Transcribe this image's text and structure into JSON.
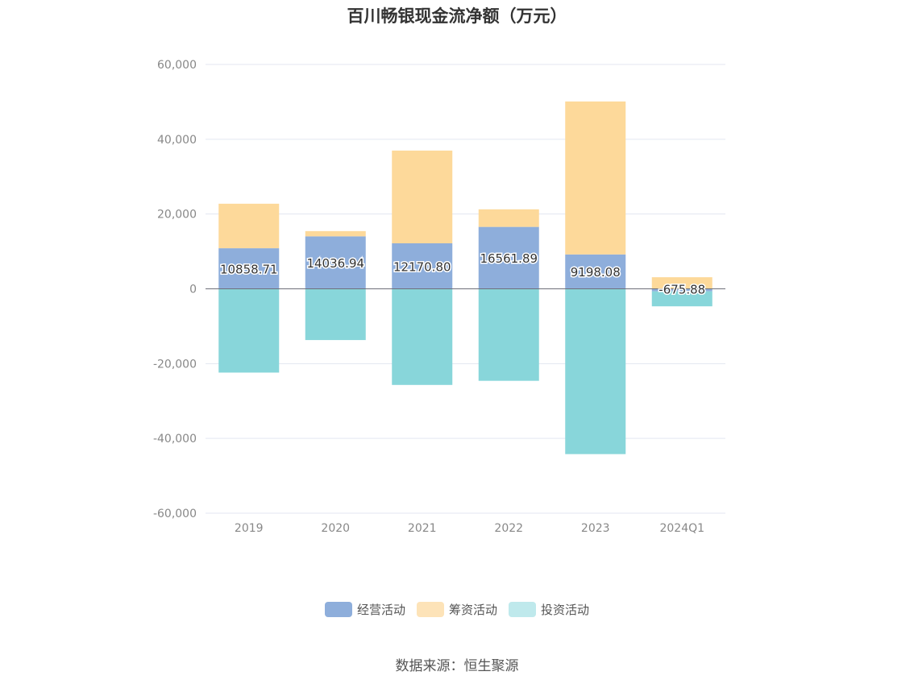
{
  "chart_data": {
    "type": "bar",
    "stacked": true,
    "title": "百川畅银现金流净额（万元）",
    "categories": [
      "2019",
      "2020",
      "2021",
      "2022",
      "2023",
      "2024Q1"
    ],
    "ylim": [
      -60000,
      60000
    ],
    "yticks": [
      60000,
      40000,
      20000,
      0,
      -20000,
      -40000,
      -60000
    ],
    "ytick_labels": [
      "60,000",
      "40,000",
      "20,000",
      "0",
      "-20,000",
      "-40,000",
      "-60,000"
    ],
    "grid": true,
    "legend_position": "bottom",
    "series": [
      {
        "name": "经营活动",
        "color": "#8eaedb",
        "values": [
          10858.71,
          14036.94,
          12170.8,
          16561.89,
          9198.08,
          -675.88
        ],
        "labels": [
          "10858.71",
          "14036.94",
          "12170.80",
          "16561.89",
          "9198.08",
          "-675.88"
        ]
      },
      {
        "name": "筹资活动",
        "color": "#fdd99a",
        "values": [
          11900,
          1400,
          24800,
          4700,
          40900,
          3100
        ]
      },
      {
        "name": "投资活动",
        "color": "#88d6da",
        "values": [
          -22400,
          -13700,
          -25700,
          -24600,
          -44200,
          -4000
        ]
      }
    ]
  },
  "legend": {
    "items": [
      {
        "label": "经营活动",
        "color": "#8eaedb"
      },
      {
        "label": "筹资活动",
        "color": "#fde3b8"
      },
      {
        "label": "投资活动",
        "color": "#bfe9ec"
      }
    ]
  },
  "source": "数据来源：恒生聚源"
}
